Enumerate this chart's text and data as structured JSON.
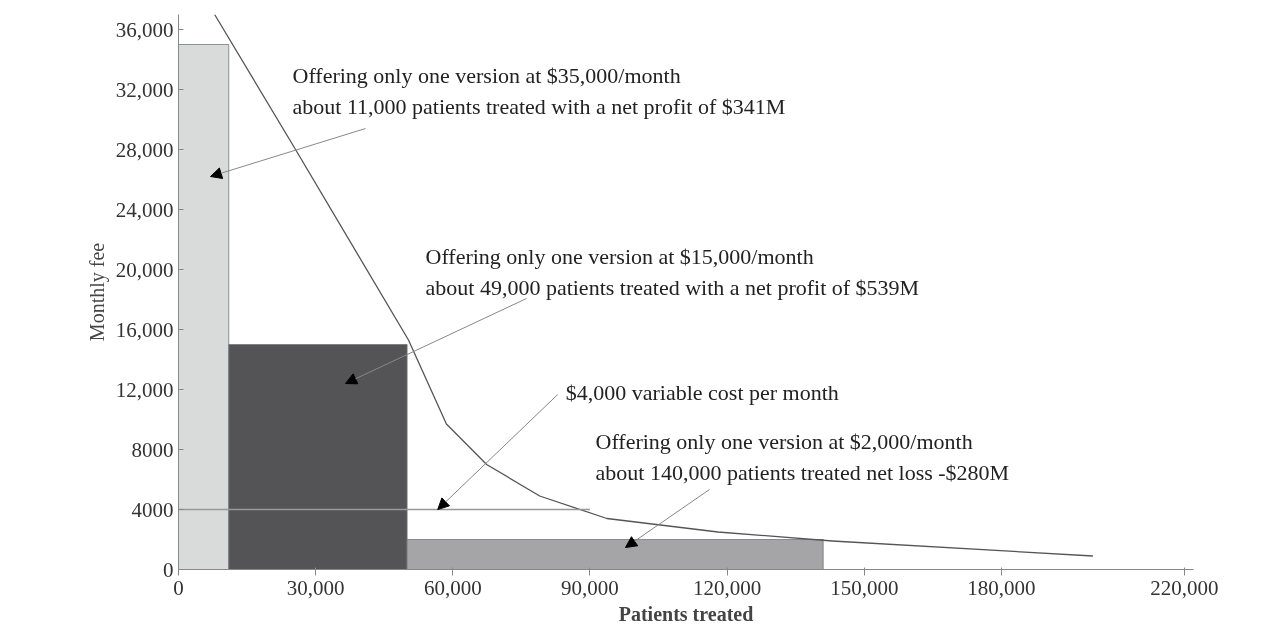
{
  "chart_data": {
    "type": "histogram",
    "xlabel": "Patients treated",
    "ylabel": "Monthly fee",
    "bins": [
      0,
      11000,
      50000,
      141000
    ],
    "values": [
      35000,
      15000,
      2000
    ],
    "colors": [
      "#d9dbdb",
      "#545457",
      "#a5a5a7"
    ],
    "series": [
      {
        "type": "line",
        "color": "#555555",
        "x": [
          7900,
          25400,
          50300,
          58600,
          67400,
          79000,
          93700,
          118000,
          143000,
          200000
        ],
        "values": [
          37000,
          28100,
          15300,
          9700,
          7000,
          4900,
          3400,
          2500,
          1900,
          900
        ]
      },
      {
        "type": "line",
        "color": "#999999",
        "x": [
          0,
          90000
        ],
        "values": [
          4000,
          4000
        ]
      }
    ],
    "xlim": [
      0,
      222000
    ],
    "xticks": [
      0,
      {
        "value": 30000,
        "label": "30,000"
      },
      {
        "value": 60000,
        "label": "60,000"
      },
      {
        "value": 90000,
        "label": "90,000"
      },
      {
        "value": 120000,
        "label": "120,000"
      },
      {
        "value": 150000,
        "label": "150,000"
      },
      {
        "value": 180000,
        "label": "180,000"
      },
      {
        "value": 220000,
        "label": "220,000"
      }
    ],
    "ylim": [
      0,
      37000
    ],
    "yticks": [
      0,
      4000,
      8000,
      {
        "value": 12000,
        "label": "12,000"
      },
      {
        "value": 16000,
        "label": "16,000"
      },
      {
        "value": 20000,
        "label": "20,000"
      },
      {
        "value": 24000,
        "label": "24,000"
      },
      {
        "value": 28000,
        "label": "28,000"
      },
      {
        "value": 32000,
        "label": "32,000"
      },
      {
        "value": 36000,
        "label": "36,000"
      }
    ],
    "grid": false,
    "annotations": [
      "Offering only one version at $35,000/month\nabout 11,000 patients treated with a net profit of $341M",
      "Offering only one version at $15,000/month\nabout 49,000 patients treated with a net profit of $539M",
      {
        "text": "$4,000 variable cost per month",
        "x": 56700,
        "y": 4000
      },
      "Offering only one version at $2,000/month\nabout 140,000 patients treated net loss -$280M"
    ]
  }
}
